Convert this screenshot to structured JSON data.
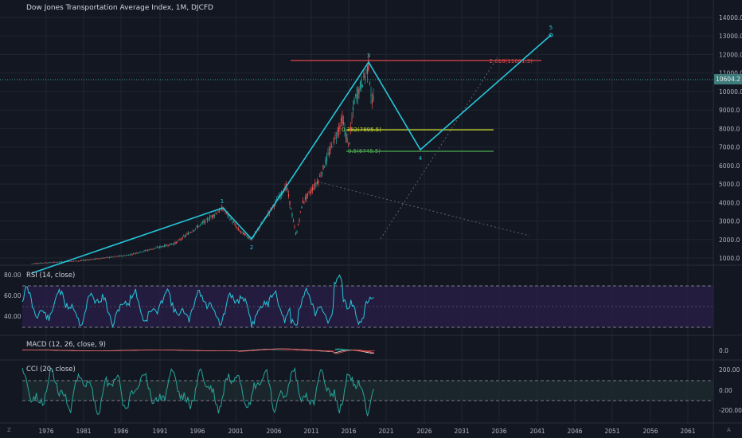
{
  "chart": {
    "title": "Dow Jones Transportation Average Index, 1M, DJCFD",
    "last_price": "10604.2",
    "bg": "#131722",
    "accent_wave": "#26c6da",
    "price_axis_ticks": [
      "14000.0",
      "13000.0",
      "12000.0",
      "11000.0",
      "10000.0",
      "9000.0",
      "8000.0",
      "7000.0",
      "6000.0",
      "5000.0",
      "4000.0",
      "3000.0",
      "2000.0",
      "1000.0"
    ],
    "time_axis_ticks": [
      "1976",
      "1981",
      "1986",
      "1991",
      "1996",
      "2001",
      "2006",
      "2011",
      "2016",
      "2021",
      "2026",
      "2031",
      "2036",
      "2041",
      "2046",
      "2051",
      "2056",
      "2061"
    ],
    "wave_labels": [
      "1",
      "2",
      "3",
      "4",
      "5"
    ],
    "fib_labels": {
      "ext": "2.618(11601.3)",
      "r382": "0.382(7895.5)",
      "r500": "0.5(6745.5)"
    },
    "fib_colors": {
      "ext": "#e04545",
      "r382": "#c6d92a",
      "r500": "#4caf50"
    }
  },
  "rsi": {
    "label": "RSI (14, close)",
    "ticks": [
      "80.00",
      "60.00",
      "40.00"
    ],
    "color": "#26c6da"
  },
  "macd": {
    "label": "MACD (12, 26, close, 9)",
    "ticks": [
      "0.0"
    ]
  },
  "cci": {
    "label": "CCI (20, close)",
    "ticks": [
      "200.00",
      "0.00",
      "-200.00"
    ],
    "color": "#26a69a"
  },
  "corners": {
    "left": "Z",
    "right": "A"
  }
}
